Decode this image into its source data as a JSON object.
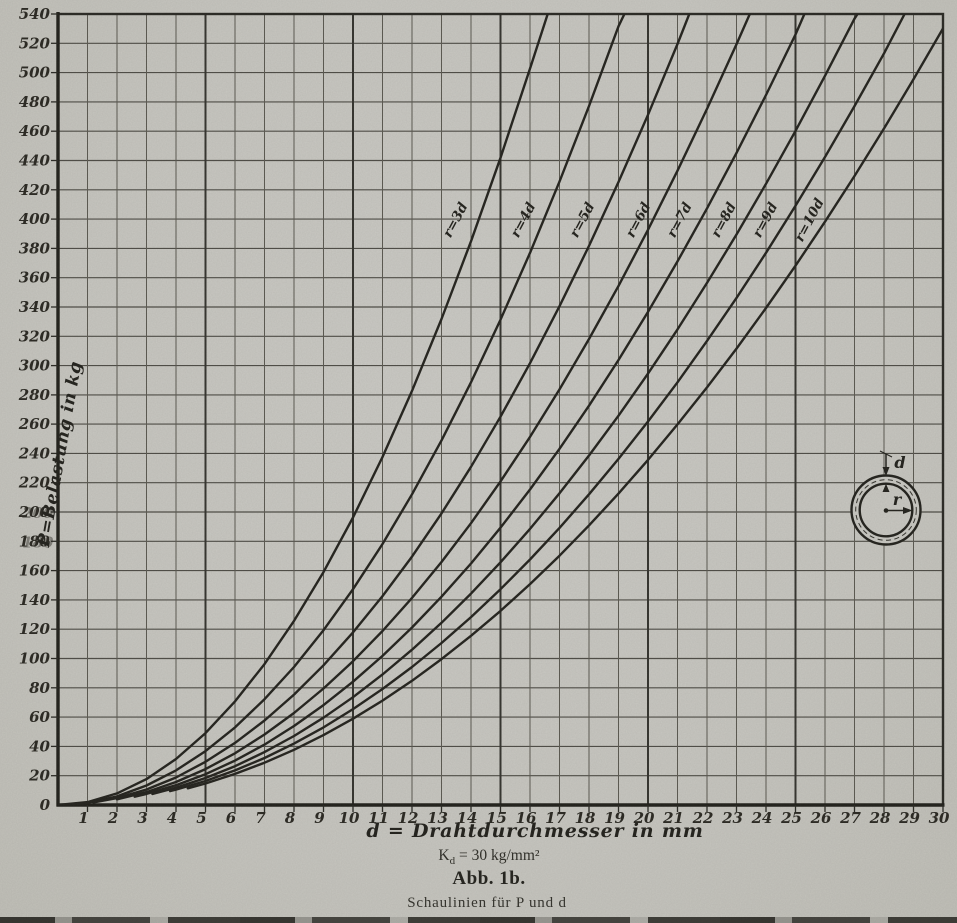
{
  "page": {
    "paper_color": "#c8c7c1",
    "ink_color": "#23221d"
  },
  "y_axis": {
    "title": "P=Belastung in kg"
  },
  "x_axis": {
    "title": "d = Drahtdurchmesser in mm"
  },
  "footer": {
    "material_constant_symbol": "K",
    "material_constant_subscript": "d",
    "material_constant_value": "= 30 kg/mm²",
    "figure_number": "Abb. 1b.",
    "figure_caption": "Schaulinien für P und d"
  },
  "inset": {
    "wire_diameter_label": "d",
    "ring_radius_label": "r"
  },
  "chart_data": {
    "type": "line",
    "title": "Abb. 1b.",
    "subtitle": "Schaulinien für P und d",
    "note": "Kd = 30 kg/mm²",
    "xlabel": "d = Drahtdurchmesser in mm",
    "ylabel": "P = Belastung in kg",
    "xlim": [
      0,
      30
    ],
    "ylim": [
      0,
      540
    ],
    "x_tick_step": 1,
    "y_tick_step": 20,
    "grid": "on",
    "legend_position": "labels-on-curves",
    "x_ticks": [
      1,
      2,
      3,
      4,
      5,
      6,
      7,
      8,
      9,
      10,
      11,
      12,
      13,
      14,
      15,
      16,
      17,
      18,
      19,
      20,
      21,
      22,
      23,
      24,
      25,
      26,
      27,
      28,
      29,
      30
    ],
    "y_ticks": [
      0,
      20,
      40,
      60,
      80,
      100,
      120,
      140,
      160,
      180,
      200,
      220,
      240,
      260,
      280,
      300,
      320,
      340,
      360,
      380,
      400,
      420,
      440,
      460,
      480,
      500,
      520,
      540
    ],
    "series": [
      {
        "name": "r=3d",
        "r_factor": 3,
        "label": {
          "text": "r=3d",
          "d": 13.6,
          "p": 398,
          "rot": -62
        },
        "points": [
          [
            0,
            0
          ],
          [
            1,
            2
          ],
          [
            2,
            7.9
          ],
          [
            3,
            17.7
          ],
          [
            4,
            31.4
          ],
          [
            5,
            49.1
          ],
          [
            6,
            70.7
          ],
          [
            7,
            96.2
          ],
          [
            8,
            125.7
          ],
          [
            9,
            159
          ],
          [
            10,
            196.3
          ],
          [
            11,
            237.6
          ],
          [
            12,
            282.7
          ],
          [
            13,
            331.8
          ],
          [
            14,
            384.8
          ],
          [
            15,
            441.8
          ],
          [
            16,
            502.7
          ],
          [
            16.6,
            540
          ]
        ]
      },
      {
        "name": "r=4d",
        "r_factor": 4,
        "label": {
          "text": "r=4d",
          "d": 15.9,
          "p": 398,
          "rot": -62
        },
        "points": [
          [
            0.5,
            0.4
          ],
          [
            1,
            1.5
          ],
          [
            2,
            5.9
          ],
          [
            3,
            13.3
          ],
          [
            4,
            23.6
          ],
          [
            5,
            36.8
          ],
          [
            6,
            53
          ],
          [
            7,
            72.2
          ],
          [
            8,
            94.2
          ],
          [
            9,
            119.3
          ],
          [
            10,
            147.3
          ],
          [
            11,
            178.2
          ],
          [
            12,
            212.1
          ],
          [
            13,
            248.9
          ],
          [
            14,
            288.6
          ],
          [
            15,
            331.3
          ],
          [
            16,
            376.9
          ],
          [
            17,
            425.6
          ],
          [
            18,
            477.1
          ],
          [
            19,
            531.6
          ],
          [
            19.2,
            540
          ]
        ]
      },
      {
        "name": "r=5d",
        "r_factor": 5,
        "label": {
          "text": "r=5d",
          "d": 17.9,
          "p": 398,
          "rot": -62
        },
        "points": [
          [
            1.2,
            1.7
          ],
          [
            2,
            4.7
          ],
          [
            3,
            10.6
          ],
          [
            4,
            18.8
          ],
          [
            5,
            29.5
          ],
          [
            6,
            42.4
          ],
          [
            7,
            57.7
          ],
          [
            8,
            75.4
          ],
          [
            9,
            95.4
          ],
          [
            10,
            117.8
          ],
          [
            11,
            142.6
          ],
          [
            12,
            169.6
          ],
          [
            13,
            199.1
          ],
          [
            14,
            230.9
          ],
          [
            15,
            265.1
          ],
          [
            16,
            301.6
          ],
          [
            17,
            340.5
          ],
          [
            18,
            381.7
          ],
          [
            19,
            425.3
          ],
          [
            20,
            471.2
          ],
          [
            21,
            519.5
          ],
          [
            21.4,
            540
          ]
        ]
      },
      {
        "name": "r=6d",
        "r_factor": 6,
        "label": {
          "text": "r=6d",
          "d": 19.8,
          "p": 398,
          "rot": -62
        },
        "points": [
          [
            2,
            3.9
          ],
          [
            3,
            8.8
          ],
          [
            4,
            15.7
          ],
          [
            5,
            24.5
          ],
          [
            6,
            35.3
          ],
          [
            7,
            48.1
          ],
          [
            8,
            62.8
          ],
          [
            9,
            79.5
          ],
          [
            10,
            98.2
          ],
          [
            11,
            118.8
          ],
          [
            12,
            141.4
          ],
          [
            13,
            165.9
          ],
          [
            14,
            192.4
          ],
          [
            15,
            220.9
          ],
          [
            16,
            251.3
          ],
          [
            17,
            283.7
          ],
          [
            18,
            318.1
          ],
          [
            19,
            354.4
          ],
          [
            20,
            392.7
          ],
          [
            21,
            433
          ],
          [
            22,
            475.2
          ],
          [
            23,
            519.4
          ],
          [
            23.45,
            540
          ]
        ]
      },
      {
        "name": "r=7d",
        "r_factor": 7,
        "label": {
          "text": "r=7d",
          "d": 21.2,
          "p": 398,
          "rot": -62
        },
        "points": [
          [
            2.6,
            5.7
          ],
          [
            3,
            7.6
          ],
          [
            4,
            13.5
          ],
          [
            5,
            21
          ],
          [
            6,
            30.3
          ],
          [
            7,
            41.2
          ],
          [
            8,
            53.9
          ],
          [
            9,
            68.2
          ],
          [
            10,
            84.2
          ],
          [
            11,
            101.8
          ],
          [
            12,
            121.2
          ],
          [
            13,
            142.2
          ],
          [
            14,
            164.9
          ],
          [
            15,
            189.3
          ],
          [
            16,
            215.4
          ],
          [
            17,
            243.2
          ],
          [
            18,
            272.6
          ],
          [
            19,
            303.8
          ],
          [
            20,
            336.6
          ],
          [
            21,
            371.1
          ],
          [
            22,
            407.3
          ],
          [
            23,
            445.2
          ],
          [
            24,
            484.7
          ],
          [
            25,
            526
          ],
          [
            25.3,
            540
          ]
        ]
      },
      {
        "name": "r=8d",
        "r_factor": 8,
        "label": {
          "text": "r=8d",
          "d": 22.7,
          "p": 398,
          "rot": -62
        },
        "points": [
          [
            3.2,
            7.5
          ],
          [
            4,
            11.8
          ],
          [
            5,
            18.4
          ],
          [
            6,
            26.5
          ],
          [
            7,
            36.1
          ],
          [
            8,
            47.1
          ],
          [
            9,
            59.6
          ],
          [
            10,
            73.6
          ],
          [
            11,
            89.1
          ],
          [
            12,
            106
          ],
          [
            13,
            124.4
          ],
          [
            14,
            144.3
          ],
          [
            15,
            165.7
          ],
          [
            16,
            188.5
          ],
          [
            17,
            212.8
          ],
          [
            18,
            238.6
          ],
          [
            19,
            265.8
          ],
          [
            20,
            294.5
          ],
          [
            21,
            324.7
          ],
          [
            22,
            356.4
          ],
          [
            23,
            389.5
          ],
          [
            24,
            424.1
          ],
          [
            25,
            460.2
          ],
          [
            26,
            497.8
          ],
          [
            27,
            536.8
          ],
          [
            27.1,
            540
          ]
        ]
      },
      {
        "name": "r=9d",
        "r_factor": 9,
        "label": {
          "text": "r=9d",
          "d": 24.1,
          "p": 398,
          "rot": -62
        },
        "points": [
          [
            3.8,
            9.5
          ],
          [
            4,
            10.5
          ],
          [
            5,
            16.4
          ],
          [
            6,
            23.6
          ],
          [
            7,
            32.1
          ],
          [
            8,
            41.9
          ],
          [
            9,
            53
          ],
          [
            10,
            65.5
          ],
          [
            11,
            79.2
          ],
          [
            12,
            94.2
          ],
          [
            13,
            110.6
          ],
          [
            14,
            128.3
          ],
          [
            15,
            147.3
          ],
          [
            16,
            167.6
          ],
          [
            17,
            189.2
          ],
          [
            18,
            212.1
          ],
          [
            19,
            236.3
          ],
          [
            20,
            261.8
          ],
          [
            21,
            288.6
          ],
          [
            22,
            316.8
          ],
          [
            23,
            346.2
          ],
          [
            24,
            377
          ],
          [
            25,
            409.1
          ],
          [
            26,
            442.4
          ],
          [
            27,
            477.1
          ],
          [
            28,
            513.1
          ],
          [
            28.7,
            540
          ]
        ]
      },
      {
        "name": "r=10d",
        "r_factor": 10,
        "label": {
          "text": "r=10d",
          "d": 25.6,
          "p": 398,
          "rot": -62
        },
        "points": [
          [
            4.4,
            11.4
          ],
          [
            5,
            14.7
          ],
          [
            6,
            21.2
          ],
          [
            7,
            28.9
          ],
          [
            8,
            37.7
          ],
          [
            9,
            47.7
          ],
          [
            10,
            58.9
          ],
          [
            11,
            71.3
          ],
          [
            12,
            84.8
          ],
          [
            13,
            99.6
          ],
          [
            14,
            115.5
          ],
          [
            15,
            132.5
          ],
          [
            16,
            150.8
          ],
          [
            17,
            170.2
          ],
          [
            18,
            190.9
          ],
          [
            19,
            212.6
          ],
          [
            20,
            235.6
          ],
          [
            21,
            259.8
          ],
          [
            22,
            285.1
          ],
          [
            23,
            311.6
          ],
          [
            24,
            339.3
          ],
          [
            25,
            368.2
          ],
          [
            26,
            398.2
          ],
          [
            27,
            429.4
          ],
          [
            28,
            461.8
          ],
          [
            29,
            495.4
          ],
          [
            30,
            530.1
          ]
        ]
      }
    ]
  }
}
